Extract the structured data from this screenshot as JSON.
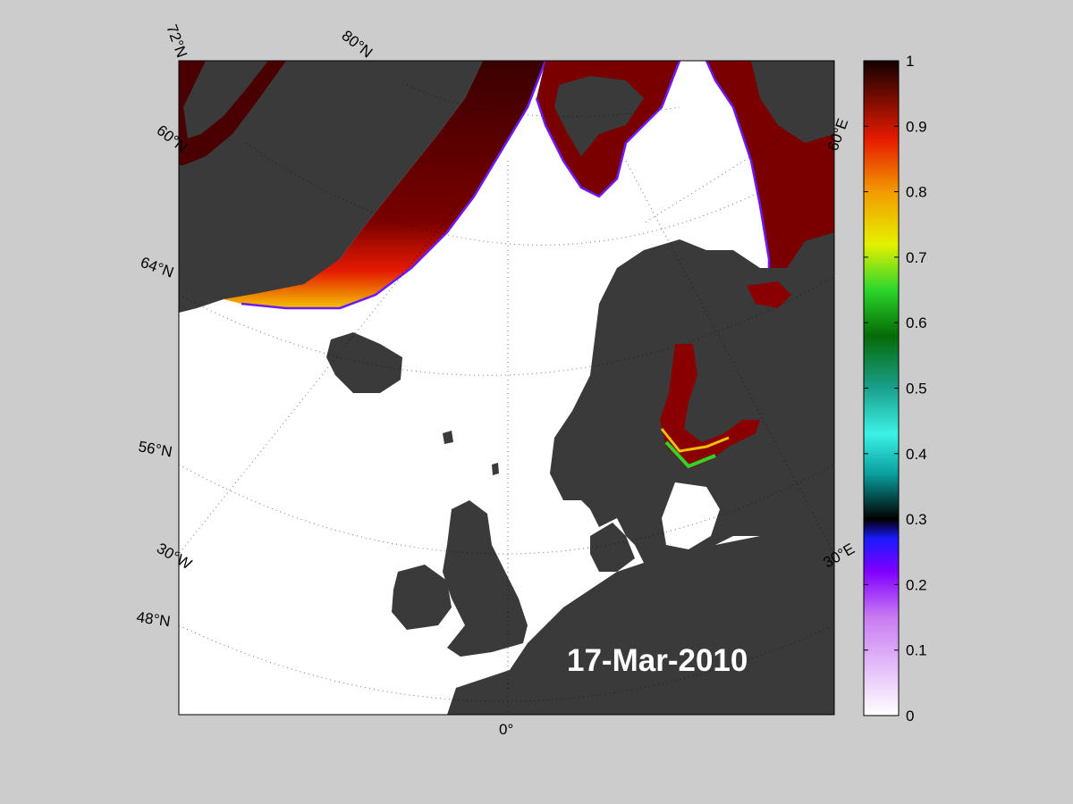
{
  "map": {
    "date_label": "17-Mar-2010",
    "lat_labels": [
      "72°N",
      "80°N",
      "60°N",
      "64°N",
      "56°N",
      "48°N"
    ],
    "lon_labels": [
      "30°W",
      "0°",
      "30°E",
      "60°E"
    ],
    "colors": {
      "background": "#cccccc",
      "ocean": "#ffffff",
      "land": "#3a3a3a",
      "lakes": "#7a7a7a",
      "ice_high": "#5a0000",
      "ice_edge": "#ff3000"
    }
  },
  "colorbar": {
    "min": 0,
    "max": 1,
    "ticks": [
      "0",
      "0.1",
      "0.2",
      "0.3",
      "0.4",
      "0.5",
      "0.6",
      "0.7",
      "0.8",
      "0.9",
      "1"
    ],
    "stops": [
      {
        "value": 0.0,
        "color": "#ffffff"
      },
      {
        "value": 0.15,
        "color": "#c97bf2"
      },
      {
        "value": 0.22,
        "color": "#8000ff"
      },
      {
        "value": 0.27,
        "color": "#1a1aff"
      },
      {
        "value": 0.3,
        "color": "#000000"
      },
      {
        "value": 0.37,
        "color": "#0aa0a0"
      },
      {
        "value": 0.43,
        "color": "#3cf2e6"
      },
      {
        "value": 0.5,
        "color": "#1aa08c"
      },
      {
        "value": 0.58,
        "color": "#056b05"
      },
      {
        "value": 0.65,
        "color": "#2bd62b"
      },
      {
        "value": 0.72,
        "color": "#e6f000"
      },
      {
        "value": 0.8,
        "color": "#f29a00"
      },
      {
        "value": 0.88,
        "color": "#e61a00"
      },
      {
        "value": 1.0,
        "color": "#140000"
      }
    ]
  }
}
